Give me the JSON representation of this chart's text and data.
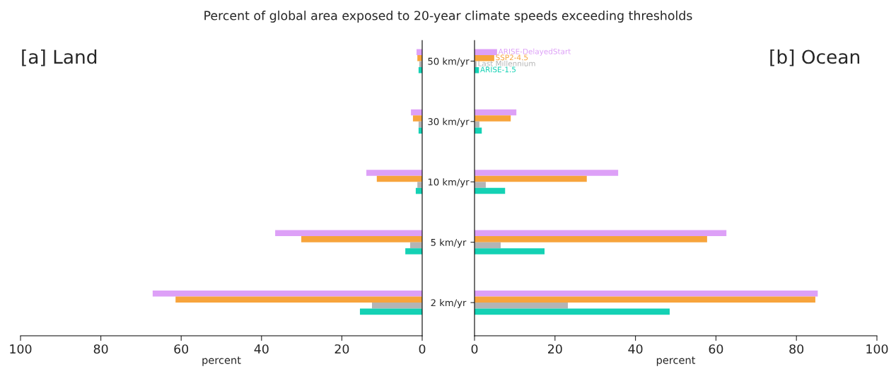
{
  "chart_data": [
    {
      "type": "bar",
      "orientation": "horizontal",
      "title": "[a] Land",
      "xlabel": "percent",
      "annotations": [
        "Percent of global area exposed to 20-year climate speeds exceeding thresholds"
      ],
      "categories": [
        "50 km/yr",
        "30 km/yr",
        "10 km/yr",
        "5 km/yr",
        "2 km/yr"
      ],
      "series": [
        {
          "color": "#dda0f7",
          "values": [
            1.4,
            2.8,
            13.9,
            36.6,
            67.1
          ]
        },
        {
          "color": "#f7a43c",
          "values": [
            1.2,
            2.3,
            11.3,
            30.1,
            61.4
          ]
        },
        {
          "color": "#b4b4b4",
          "values": [
            0.7,
            0.9,
            1.2,
            3.0,
            12.5
          ]
        },
        {
          "color": "#14d1b4",
          "values": [
            0.9,
            0.9,
            1.6,
            4.2,
            15.5
          ]
        }
      ],
      "xlim": [
        100,
        0
      ],
      "xticks": [
        100,
        80,
        60,
        40,
        20,
        0
      ],
      "grid": false,
      "legend": false
    },
    {
      "type": "bar",
      "orientation": "horizontal",
      "title": "[b] Ocean",
      "xlabel": "percent",
      "categories": [
        null,
        null,
        null,
        null,
        null
      ],
      "series": [
        {
          "name": "ARISE-DelayedStart",
          "color": "#dda0f7",
          "values": [
            5.6,
            10.4,
            35.7,
            62.6,
            85.3
          ]
        },
        {
          "name": "SSP2-4.5",
          "color": "#f7a43c",
          "values": [
            4.9,
            9.0,
            27.9,
            57.8,
            84.7
          ]
        },
        {
          "name": "Last Millennium",
          "color": "#b4b4b4",
          "values": [
            0.5,
            1.2,
            2.8,
            6.5,
            23.2
          ]
        },
        {
          "name": "ARISE-1.5",
          "color": "#14d1b4",
          "values": [
            1.1,
            1.8,
            7.6,
            17.4,
            48.5
          ]
        }
      ],
      "xlim": [
        0,
        100
      ],
      "xticks": [
        0,
        20,
        40,
        60,
        80,
        100
      ],
      "tick_labels": "x",
      "grid": false,
      "legend": "top left"
    }
  ]
}
